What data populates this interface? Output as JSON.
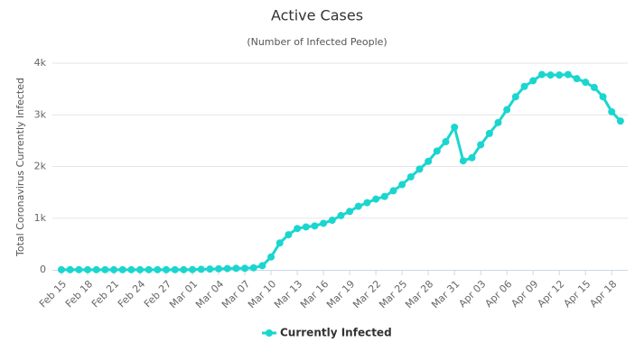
{
  "chart_data": {
    "type": "line",
    "title": "Active Cases",
    "subtitle": "(Number of Infected People)",
    "y_label": "Total Coronavirus Currently Infected",
    "categories": [
      "Feb 15",
      null,
      null,
      "Feb 18",
      null,
      null,
      "Feb 21",
      null,
      null,
      "Feb 24",
      null,
      null,
      "Feb 27",
      null,
      null,
      "Mar 01",
      null,
      null,
      "Mar 04",
      null,
      null,
      "Mar 07",
      null,
      null,
      "Mar 10",
      null,
      null,
      "Mar 13",
      null,
      null,
      "Mar 16",
      null,
      null,
      "Mar 19",
      null,
      null,
      "Mar 22",
      null,
      null,
      "Mar 25",
      null,
      null,
      "Mar 28",
      null,
      null,
      "Mar 31",
      null,
      null,
      "Apr 03",
      null,
      null,
      "Apr 06",
      null,
      null,
      "Apr 09",
      null,
      null,
      "Apr 12",
      null,
      null,
      "Apr 15",
      null,
      null,
      "Apr 18",
      null
    ],
    "series": [
      {
        "name": "Currently Infected",
        "color": "#1ad6cf",
        "values": [
          3,
          3,
          3,
          3,
          3,
          3,
          3,
          3,
          3,
          3,
          3,
          3,
          3,
          3,
          3,
          5,
          10,
          15,
          20,
          25,
          30,
          30,
          40,
          80,
          250,
          520,
          680,
          800,
          830,
          850,
          900,
          960,
          1050,
          1130,
          1230,
          1300,
          1370,
          1420,
          1530,
          1650,
          1800,
          1950,
          2100,
          2300,
          2480,
          2760,
          2110,
          2170,
          2420,
          2640,
          2850,
          3100,
          3350,
          3550,
          3660,
          3780,
          3770,
          3770,
          3780,
          3700,
          3630,
          3530,
          3350,
          3060,
          2880
        ]
      }
    ],
    "ylim": [
      0,
      4000
    ],
    "yticks": [
      0,
      {
        "value": 1000,
        "label": "1k"
      },
      {
        "value": 2000,
        "label": "2k"
      },
      {
        "value": 3000,
        "label": "3k"
      },
      {
        "value": 4000,
        "label": "4k"
      }
    ],
    "grid": true,
    "legend": "bottom"
  }
}
